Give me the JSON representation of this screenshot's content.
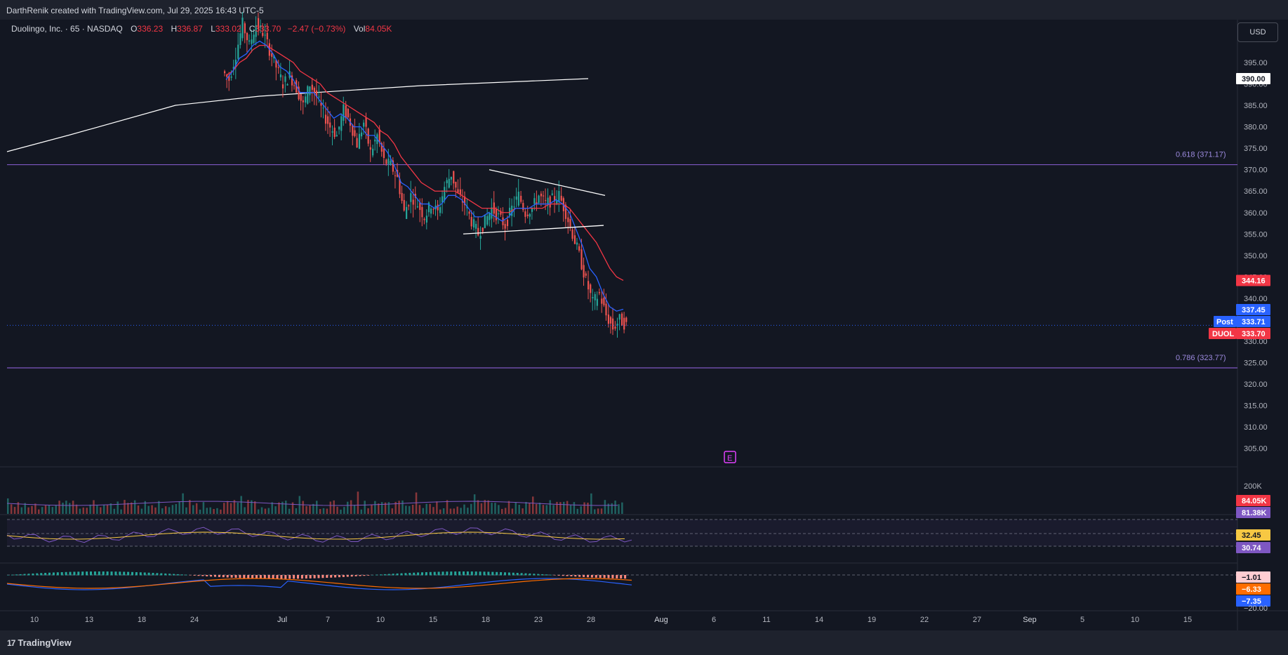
{
  "header": {
    "attribution": "DarthRenik created with TradingView.com, Jul 29, 2025 16:43 UTC-5"
  },
  "legend": {
    "symbol": "Duolingo, Inc. · 65 · NASDAQ",
    "open_label": "O",
    "open": "336.23",
    "high_label": "H",
    "high": "336.87",
    "low_label": "L",
    "low": "333.02",
    "close_label": "C",
    "close": "333.70",
    "change": "−2.47 (−0.73%)",
    "vol_label": "Vol",
    "vol": "84.05K"
  },
  "currency_button": "USD",
  "footer": {
    "brand": "TradingView",
    "logo_glyph": "17"
  },
  "colors": {
    "up": "#26a69a",
    "down": "#ef5350",
    "ema_fast": "#2962ff",
    "ema_slow": "#f23645",
    "fib": "#7e57c2",
    "rsi": "#7e57c2",
    "rsi_ma": "#f7c843",
    "macd": "#2962ff",
    "signal": "#ff6d00"
  },
  "chart_data": {
    "type": "candlestick",
    "symbol": "DUOL",
    "interval": "65",
    "ylim": [
      301,
      405
    ],
    "price_ticks": [
      "395.00",
      "390.00",
      "385.00",
      "380.00",
      "375.00",
      "370.00",
      "365.00",
      "360.00",
      "355.00",
      "350.00",
      "345.00",
      "340.00",
      "335.00",
      "330.00",
      "325.00",
      "320.00",
      "315.00",
      "310.00",
      "305.00"
    ],
    "x_tick_labels": [
      "10",
      "13",
      "18",
      "24",
      "Jul",
      "7",
      "10",
      "15",
      "18",
      "23",
      "28",
      "Aug",
      "6",
      "11",
      "14",
      "19",
      "22",
      "27",
      "Sep",
      "5",
      "10",
      "15"
    ],
    "close_path": [
      391,
      397,
      404,
      399,
      404,
      402,
      398,
      394,
      390,
      392,
      389,
      385,
      390,
      387,
      383,
      380,
      378,
      384,
      381,
      376,
      381,
      374,
      378,
      372,
      371,
      368,
      360,
      364,
      362,
      359,
      362,
      360,
      366,
      369,
      364,
      362,
      358,
      355,
      358,
      361,
      359,
      357,
      361,
      364,
      360,
      361,
      364,
      362,
      363,
      364,
      360,
      355,
      350,
      344,
      339,
      341,
      336,
      333,
      335,
      333.7
    ],
    "ema_fast": [
      391,
      393,
      396,
      397,
      399,
      400,
      399,
      397,
      394,
      393,
      391,
      388,
      388,
      388,
      386,
      384,
      382,
      383,
      382,
      380,
      380,
      378,
      378,
      376,
      374,
      371,
      367,
      366,
      364,
      362,
      362,
      361,
      362,
      364,
      364,
      363,
      361,
      359,
      359,
      360,
      359,
      358,
      359,
      361,
      361,
      361,
      362,
      362,
      362,
      363,
      362,
      360,
      356,
      352,
      347,
      345,
      341,
      338,
      337,
      337.45
    ],
    "ema_slow": [
      392,
      393,
      395,
      396,
      398,
      399,
      399,
      398,
      397,
      396,
      395,
      393,
      392,
      391,
      390,
      388,
      387,
      386,
      385,
      384,
      383,
      382,
      381,
      379,
      378,
      376,
      373,
      371,
      369,
      367,
      366,
      365,
      365,
      365,
      365,
      364,
      363,
      362,
      361,
      361,
      361,
      360,
      360,
      361,
      361,
      361,
      361,
      361,
      362,
      362,
      362,
      361,
      359,
      357,
      355,
      353,
      350,
      347,
      345,
      344.16
    ],
    "annotations": [
      {
        "type": "fib",
        "level": "0.618",
        "price": 371.17,
        "label": "0.618 (371.17)"
      },
      {
        "type": "fib",
        "level": "0.786",
        "price": 323.77,
        "label": "0.786 (323.77)"
      },
      {
        "type": "trendline",
        "note": "rising line to 390.00",
        "end_label": "390.00"
      },
      {
        "type": "triangle",
        "upper": [
          370,
          364
        ],
        "lower": [
          355,
          357
        ]
      },
      {
        "type": "earnings",
        "label": "E"
      }
    ],
    "price_labels": [
      {
        "text": "390.00",
        "kind": "white"
      },
      {
        "text": "344.16",
        "kind": "ema_slow"
      },
      {
        "text": "337.45",
        "kind": "ema_fast"
      },
      {
        "name": "Post",
        "text": "333.71",
        "kind": "post"
      },
      {
        "name": "DUOL",
        "text": "333.70",
        "kind": "last"
      }
    ],
    "volume": {
      "tick": "200K",
      "last": "84.05K",
      "ma": "81.38K"
    },
    "rsi": {
      "value": "30.74",
      "ma": "32.45"
    },
    "macd": {
      "hist": "−1.01",
      "signal": "−6.33",
      "macd": "−7.35",
      "tick": "−20.00"
    }
  }
}
